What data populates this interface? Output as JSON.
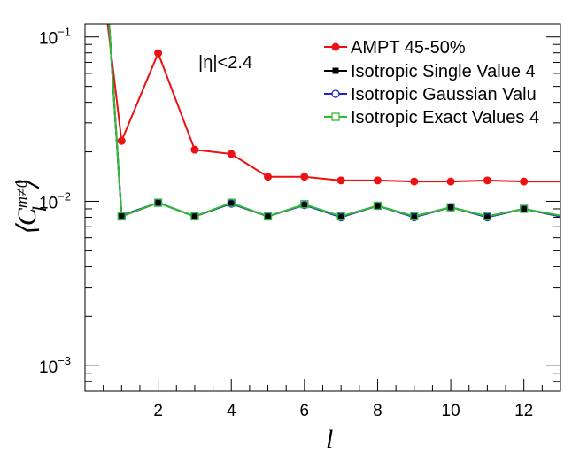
{
  "chart_data": {
    "type": "line",
    "xlabel": "l",
    "ylabel": "⟨C_l^{m≠0}⟩",
    "xlim": [
      0.0,
      13.0
    ],
    "ylim": [
      0.0007,
      0.12
    ],
    "yscale": "log",
    "x_ticks": [
      2,
      4,
      6,
      8,
      10,
      12
    ],
    "x_tick_labels": [
      "2",
      "4",
      "6",
      "8",
      "10",
      "12"
    ],
    "y_ticks": [
      0.001,
      0.01,
      0.1
    ],
    "y_tick_base_labels": [
      "10",
      "10",
      "10"
    ],
    "y_tick_exponents": [
      "−3",
      "−2",
      "−1"
    ],
    "annotation": "|η|<2.4",
    "legend_position": "top-right",
    "series": [
      {
        "name": "AMPT 45-50%",
        "color": "#ee1111",
        "marker": "filled-circle",
        "x": [
          0.6,
          1,
          2,
          3,
          4,
          5,
          6,
          7,
          8,
          9,
          10,
          11,
          12,
          13
        ],
        "values": [
          0.13,
          0.0233,
          0.0797,
          0.0206,
          0.0194,
          0.0141,
          0.0141,
          0.0134,
          0.0134,
          0.0132,
          0.0132,
          0.0134,
          0.0132,
          0.0132
        ]
      },
      {
        "name": "Isotropic Single Value 4",
        "color": "#000000",
        "marker": "filled-square",
        "x": [
          0.65,
          1,
          2,
          3,
          4,
          5,
          6,
          7,
          8,
          9,
          10,
          11,
          12,
          13
        ],
        "values": [
          0.13,
          0.0081,
          0.0098,
          0.0081,
          0.0097,
          0.0081,
          0.0095,
          0.0081,
          0.0094,
          0.0081,
          0.0092,
          0.0081,
          0.009,
          0.0081
        ]
      },
      {
        "name": "Isotropic Gaussian Valu",
        "color": "#2222cc",
        "marker": "open-circle",
        "x": [
          0.65,
          1,
          2,
          3,
          4,
          5,
          6,
          7,
          8,
          9,
          10,
          11,
          12,
          13
        ],
        "values": [
          0.13,
          0.0082,
          0.0098,
          0.0081,
          0.0097,
          0.0081,
          0.0095,
          0.008,
          0.0094,
          0.008,
          0.0092,
          0.008,
          0.009,
          0.0081
        ]
      },
      {
        "name": "Isotropic Exact Values 4",
        "color": "#33bb33",
        "marker": "open-square",
        "x": [
          0.65,
          1,
          2,
          3,
          4,
          5,
          6,
          7,
          8,
          9,
          10,
          11,
          12,
          13
        ],
        "values": [
          0.13,
          0.0081,
          0.0098,
          0.0081,
          0.0098,
          0.0081,
          0.0096,
          0.0081,
          0.0094,
          0.0081,
          0.0092,
          0.0081,
          0.009,
          0.0082
        ]
      }
    ]
  }
}
